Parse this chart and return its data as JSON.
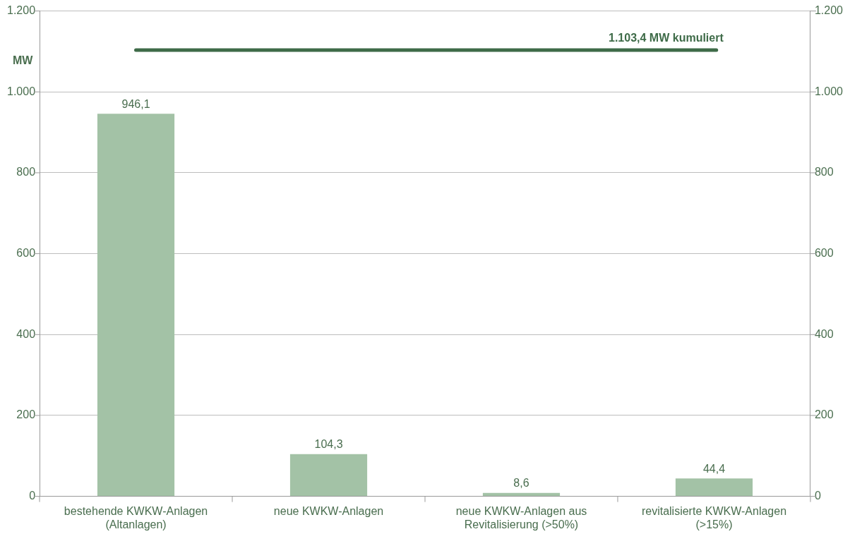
{
  "chart_data": {
    "type": "bar",
    "ylabel": "MW",
    "categories": [
      "bestehende KWKW-Anlagen\n(Altanlagen)",
      "neue KWKW-Anlagen",
      "neue KWKW-Anlagen aus\nRevitalisierung (>50%)",
      "revitalisierte KWKW-Anlagen\n(>15%)"
    ],
    "values": [
      946.1,
      104.3,
      8.6,
      44.4
    ],
    "color": "#a3c2a6",
    "value_labels": [
      "946,1",
      "104,3",
      "8,6",
      "44,4"
    ],
    "ylim": [
      0,
      1200
    ],
    "yticks": [
      0,
      200,
      400,
      600,
      800,
      {
        "value": 1000,
        "label": "1.000"
      },
      {
        "value": 1200,
        "label": "1.200"
      }
    ],
    "y2lim": [
      0,
      1200
    ],
    "y2ticks": [
      0,
      200,
      400,
      600,
      800,
      {
        "value": 1000,
        "label": "1.000"
      },
      {
        "value": 1200,
        "label": "1.200"
      }
    ],
    "ref_lines": [
      {
        "axis": "y",
        "value": 1103.4,
        "label": "1.103,4 MW kumuliert",
        "color": "#3e6b48"
      }
    ],
    "grid": "y",
    "legend": false
  }
}
